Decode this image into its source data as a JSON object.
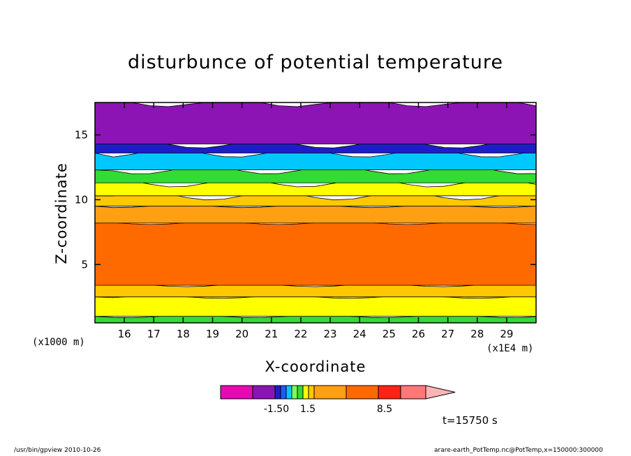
{
  "chart_data": {
    "type": "heatmap",
    "title": "disturbunce of potential temperature",
    "xlabel": "X-coordinate",
    "ylabel": "Z-coordinate",
    "x_unit_left": "(x1000 m)",
    "x_unit_right": "(x1E4 m)",
    "x_ticks": [
      "16",
      "17",
      "18",
      "19",
      "20",
      "21",
      "22",
      "23",
      "24",
      "25",
      "26",
      "27",
      "28",
      "29"
    ],
    "y_ticks": [
      "5",
      "10",
      "15"
    ],
    "xlim": [
      15,
      30
    ],
    "ylim": [
      0.5,
      17.5
    ],
    "colorbar": {
      "levels": [
        "-1.50",
        "1.5",
        "8.5"
      ],
      "colors": [
        "#e60ab4",
        "#8c14b4",
        "#1e1ec8",
        "#1e5aff",
        "#00c8ff",
        "#7dff5a",
        "#32dc32",
        "#ffff00",
        "#ffc800",
        "#ffa014",
        "#ff6a00",
        "#ff2314",
        "#ff7878",
        "#ffb4b4"
      ]
    },
    "bands": [
      {
        "z_top": 1.0,
        "color": "#32dc32"
      },
      {
        "z_top": 2.5,
        "color": "#ffff00"
      },
      {
        "z_top": 3.4,
        "color": "#ffc800"
      },
      {
        "z_top": 8.2,
        "color": "#ff6a00"
      },
      {
        "z_top": 9.5,
        "color": "#ffa014"
      },
      {
        "z_top": 10.3,
        "color": "#ffc800"
      },
      {
        "z_top": 11.3,
        "color": "#ffff00"
      },
      {
        "z_top": 12.3,
        "color": "#32dc32"
      },
      {
        "z_top": 13.6,
        "color": "#00c8ff"
      },
      {
        "z_top": 14.3,
        "color": "#1e1ec8"
      },
      {
        "z_top": 17.5,
        "color": "#8c14b4"
      }
    ],
    "annotation": "t=15750 s"
  },
  "footer": {
    "left": "/usr/bin/gpview   2010-10-26",
    "right": "arare-earth_PotTemp.nc@PotTemp,x=150000:300000"
  }
}
